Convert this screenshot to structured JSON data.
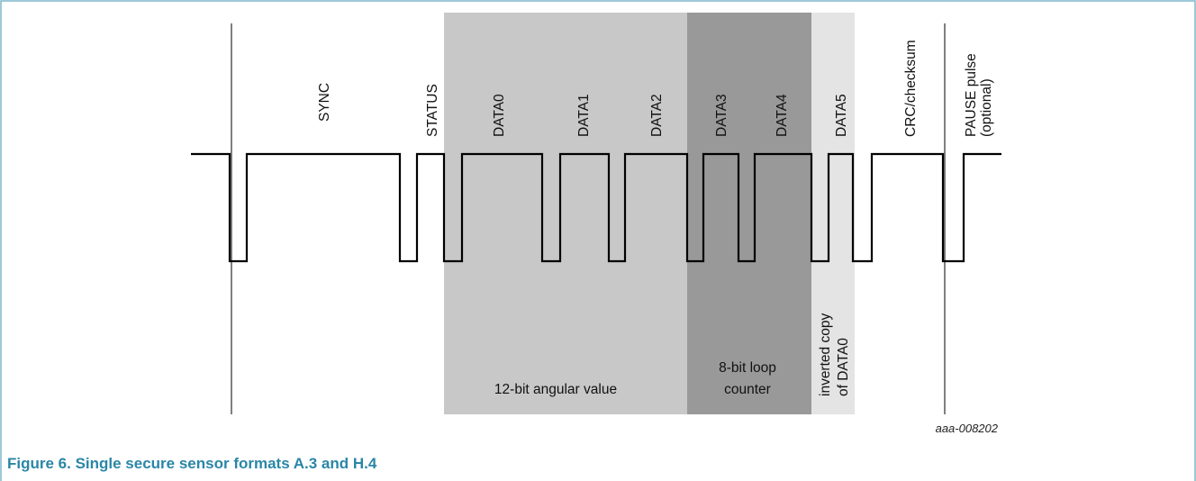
{
  "figure": {
    "caption": "Figure 6.  Single secure sensor formats A.3 and H.4",
    "id_label": "aaa-008202",
    "colors": {
      "frame": "#7fb5cc",
      "caption": "#2a86a6",
      "region_angular": "#c8c8c8",
      "region_counter": "#999999",
      "region_inverted": "#e4e4e4",
      "signal": "#000000"
    }
  },
  "fields": [
    {
      "key": "sync",
      "label": "SYNC"
    },
    {
      "key": "status",
      "label": "STATUS"
    },
    {
      "key": "data0",
      "label": "DATA0"
    },
    {
      "key": "data1",
      "label": "DATA1"
    },
    {
      "key": "data2",
      "label": "DATA2"
    },
    {
      "key": "data3",
      "label": "DATA3"
    },
    {
      "key": "data4",
      "label": "DATA4"
    },
    {
      "key": "data5",
      "label": "DATA5"
    },
    {
      "key": "crc",
      "label": "CRC/checksum"
    },
    {
      "key": "pause",
      "lines": [
        "PAUSE pulse",
        "(optional)"
      ]
    }
  ],
  "regions": {
    "angular": {
      "label": "12-bit angular value"
    },
    "counter": {
      "lines": [
        "8-bit loop",
        "counter"
      ]
    },
    "inverted": {
      "lines": [
        "inverted copy",
        "of DATA0"
      ]
    }
  }
}
